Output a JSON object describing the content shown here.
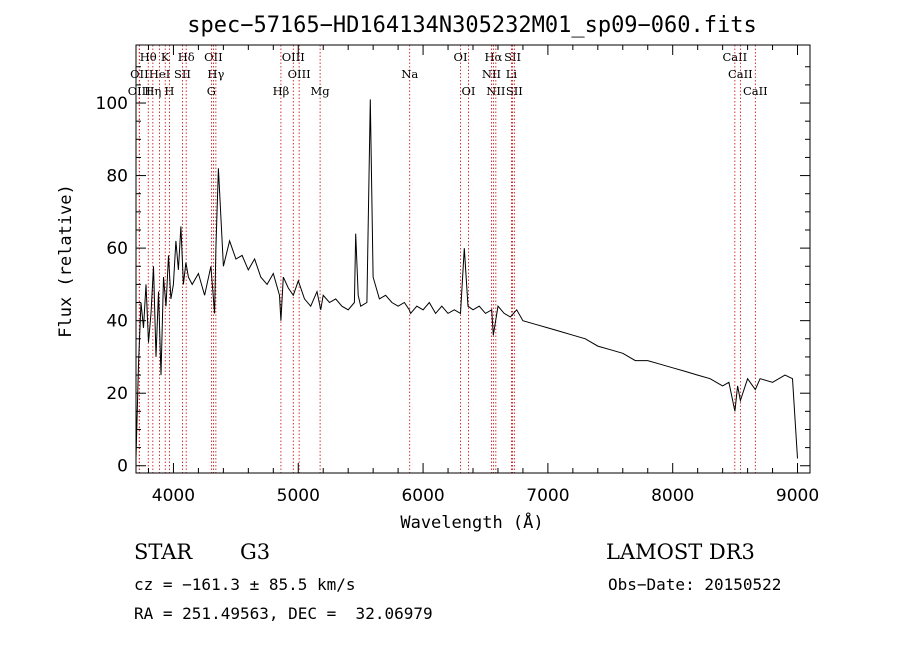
{
  "chart_data": {
    "type": "line",
    "title": "spec−57165−HD164134N305232M01_sp09−060.fits",
    "xlabel": "Wavelength (Å)",
    "ylabel": "Flux (relative)",
    "xlim": [
      3700,
      9100
    ],
    "ylim": [
      -2,
      116
    ],
    "xticks": [
      4000,
      5000,
      6000,
      7000,
      8000,
      9000
    ],
    "yticks": [
      0,
      20,
      40,
      60,
      80,
      100
    ],
    "spectrum": {
      "x": [
        3700,
        3720,
        3740,
        3760,
        3780,
        3800,
        3820,
        3840,
        3860,
        3880,
        3900,
        3920,
        3940,
        3960,
        3980,
        4000,
        4020,
        4040,
        4060,
        4080,
        4100,
        4120,
        4150,
        4200,
        4250,
        4300,
        4330,
        4340,
        4360,
        4400,
        4450,
        4500,
        4550,
        4600,
        4650,
        4700,
        4750,
        4800,
        4850,
        4861,
        4880,
        4920,
        4960,
        5000,
        5050,
        5100,
        5150,
        5180,
        5200,
        5250,
        5300,
        5350,
        5400,
        5450,
        5460,
        5480,
        5500,
        5550,
        5577,
        5600,
        5650,
        5700,
        5750,
        5800,
        5850,
        5890,
        5900,
        5950,
        6000,
        6050,
        6100,
        6150,
        6200,
        6250,
        6300,
        6330,
        6360,
        6400,
        6450,
        6500,
        6550,
        6563,
        6600,
        6650,
        6700,
        6750,
        6800,
        6900,
        7000,
        7100,
        7200,
        7300,
        7400,
        7500,
        7600,
        7700,
        7800,
        7900,
        8000,
        8100,
        8200,
        8300,
        8400,
        8450,
        8498,
        8520,
        8542,
        8600,
        8662,
        8700,
        8800,
        8900,
        8960,
        9000
      ],
      "y": [
        2,
        28,
        45,
        38,
        50,
        34,
        42,
        55,
        30,
        48,
        25,
        52,
        44,
        58,
        46,
        50,
        62,
        54,
        66,
        50,
        56,
        52,
        50,
        53,
        47,
        55,
        42,
        60,
        82,
        55,
        62,
        57,
        58,
        54,
        57,
        52,
        50,
        53,
        47,
        40,
        52,
        49,
        47,
        51,
        46,
        44,
        48,
        43,
        47,
        45,
        46,
        44,
        43,
        45,
        64,
        47,
        44,
        45,
        101,
        52,
        46,
        47,
        45,
        44,
        45,
        43,
        42,
        44,
        43,
        45,
        42,
        44,
        42,
        43,
        42,
        60,
        44,
        43,
        44,
        42,
        43,
        36,
        44,
        42,
        41,
        43,
        40,
        39,
        38,
        37,
        36,
        35,
        33,
        32,
        31,
        29,
        29,
        28,
        27,
        26,
        25,
        24,
        22,
        23,
        15,
        22,
        18,
        24,
        21,
        24,
        23,
        25,
        24,
        2
      ]
    },
    "lines": [
      {
        "name": "Hθ",
        "x": 3798,
        "row": 1
      },
      {
        "name": "K",
        "x": 3934,
        "row": 1
      },
      {
        "name": "Hδ",
        "x": 4102,
        "row": 1
      },
      {
        "name": "OII",
        "x": 4320,
        "row": 1
      },
      {
        "name": "OIII",
        "x": 4960,
        "row": 1
      },
      {
        "name": "OI",
        "x": 6300,
        "row": 1
      },
      {
        "name": "Hα",
        "x": 6563,
        "row": 1
      },
      {
        "name": "SII",
        "x": 6717,
        "row": 1
      },
      {
        "name": "CaII",
        "x": 8498,
        "row": 1
      },
      {
        "name": "OII",
        "x": 3727,
        "row": 2
      },
      {
        "name": "HeI",
        "x": 3889,
        "row": 2
      },
      {
        "name": "SII",
        "x": 4072,
        "row": 2
      },
      {
        "name": "Hγ",
        "x": 4340,
        "row": 2
      },
      {
        "name": "OIII",
        "x": 5007,
        "row": 2
      },
      {
        "name": "Na",
        "x": 5893,
        "row": 2
      },
      {
        "name": "NII",
        "x": 6548,
        "row": 2
      },
      {
        "name": "Li",
        "x": 6708,
        "row": 2
      },
      {
        "name": "CaII",
        "x": 8542,
        "row": 2
      },
      {
        "name": "OIII",
        "x": 3726,
        "row": 3
      },
      {
        "name": "Hη",
        "x": 3835,
        "row": 3
      },
      {
        "name": "H",
        "x": 3968,
        "row": 3
      },
      {
        "name": "G",
        "x": 4304,
        "row": 3
      },
      {
        "name": "Hβ",
        "x": 4861,
        "row": 3
      },
      {
        "name": "Mg",
        "x": 5175,
        "row": 3
      },
      {
        "name": "OI",
        "x": 6364,
        "row": 3
      },
      {
        "name": "NII",
        "x": 6583,
        "row": 3
      },
      {
        "name": "SII",
        "x": 6731,
        "row": 3
      },
      {
        "name": "CaII",
        "x": 8662,
        "row": 3
      }
    ]
  },
  "info": {
    "object_type": "STAR",
    "subclass": "G3",
    "survey": "LAMOST DR3",
    "cz": "cz = −161.3 ± 85.5 km/s",
    "obs_date": "Obs−Date: 20150522",
    "coords": "RA = 251.49563, DEC =  32.06979"
  },
  "colors": {
    "line_marker": "#cc0000",
    "spectrum": "#000000",
    "axes": "#000000"
  }
}
